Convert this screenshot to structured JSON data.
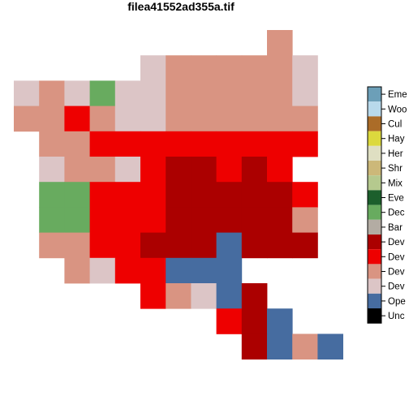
{
  "chart_data": {
    "type": "heatmap",
    "title": "filea41552ad355a.tif",
    "grid": false,
    "legend_placement": "right",
    "colors": {
      "U": "#000000",
      "O": "#466ca0",
      "L": "#dcc5c6",
      "M": "#d99482",
      "H": "#ee0000",
      "V": "#ab0000",
      "B": "#b3aca3",
      "D": "#68ab5f",
      "E": "#1c5f2c",
      "X": "#b5c98e",
      "S": "#ccb879",
      "R": "#dfdfc2",
      "Y": "#dcd93d",
      "C": "#ab6c28",
      "W": "#b8d9eb",
      "A": "#6c9fb8"
    },
    "legend": [
      {
        "key": "A",
        "label": "Eme"
      },
      {
        "key": "W",
        "label": "Woo"
      },
      {
        "key": "C",
        "label": "Cul"
      },
      {
        "key": "Y",
        "label": "Hay"
      },
      {
        "key": "R",
        "label": "Her"
      },
      {
        "key": "S",
        "label": "Shr"
      },
      {
        "key": "X",
        "label": "Mix"
      },
      {
        "key": "E",
        "label": "Eve"
      },
      {
        "key": "D",
        "label": "Dec"
      },
      {
        "key": "B",
        "label": "Bar"
      },
      {
        "key": "V",
        "label": "Dev"
      },
      {
        "key": "H",
        "label": "Dev"
      },
      {
        "key": "M",
        "label": "Dev"
      },
      {
        "key": "L",
        "label": "Dev"
      },
      {
        "key": "O",
        "label": "Ope"
      },
      {
        "key": "U",
        "label": "Unc"
      }
    ],
    "cols": 13,
    "rows": 13,
    "cells": [
      "..........M..",
      ".....LMMMMML.",
      "LMLDLLMMMMML.",
      "MMHMLLMMMMMM.",
      ".MMHHHHHHHHH.",
      ".LMMLHVVHVH..",
      ".DDHHHVVVVVH.",
      ".DDHHHVVVVVM.",
      ".MMHHVVVOVVV.",
      "..MLHHOOO....",
      ".....HMLOV...",
      "........HVO..",
      ".........VOMO"
    ]
  }
}
